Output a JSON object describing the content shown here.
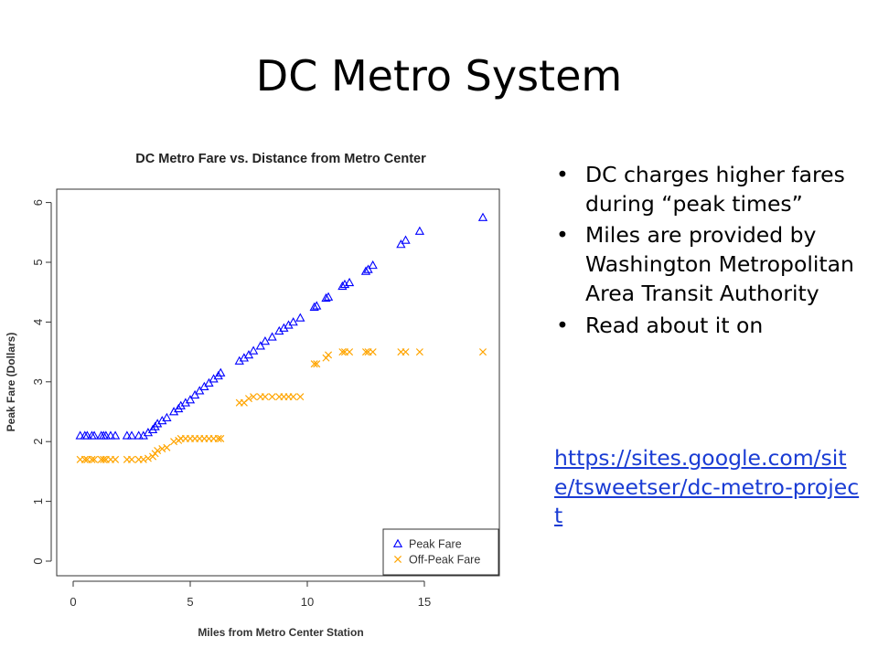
{
  "slide": {
    "title": "DC Metro System",
    "bullets": [
      "DC charges higher fares during “peak times”",
      "Miles are provided by Washington Metropolitan Area Transit Authority",
      "Read about it on"
    ],
    "bullet_char": "•",
    "link_text": "https://sites.google.com/site/tsweetser/dc-metro-project"
  },
  "chart_data": {
    "type": "scatter",
    "title": "DC Metro Fare vs. Distance from Metro Center",
    "xlabel": "Miles from Metro Center Station",
    "ylabel": "Peak Fare (Dollars)",
    "xlim": [
      0,
      18
    ],
    "ylim": [
      0,
      6.2
    ],
    "xticks": [
      0,
      5,
      10,
      15
    ],
    "yticks": [
      0,
      1,
      2,
      3,
      4,
      5,
      6
    ],
    "grid": false,
    "legend_position": "bottom-right",
    "series": [
      {
        "name": "Peak Fare",
        "marker": "triangle",
        "color": "#0000ff",
        "points": [
          [
            0.3,
            2.1
          ],
          [
            0.5,
            2.1
          ],
          [
            0.6,
            2.1
          ],
          [
            0.8,
            2.1
          ],
          [
            0.9,
            2.1
          ],
          [
            1.2,
            2.1
          ],
          [
            1.3,
            2.1
          ],
          [
            1.4,
            2.1
          ],
          [
            1.6,
            2.1
          ],
          [
            1.8,
            2.1
          ],
          [
            2.3,
            2.1
          ],
          [
            2.5,
            2.1
          ],
          [
            2.8,
            2.1
          ],
          [
            3.0,
            2.1
          ],
          [
            3.2,
            2.15
          ],
          [
            3.4,
            2.2
          ],
          [
            3.5,
            2.25
          ],
          [
            3.6,
            2.3
          ],
          [
            3.8,
            2.35
          ],
          [
            4.0,
            2.4
          ],
          [
            4.3,
            2.5
          ],
          [
            4.5,
            2.55
          ],
          [
            4.6,
            2.6
          ],
          [
            4.8,
            2.65
          ],
          [
            5.0,
            2.7
          ],
          [
            5.2,
            2.78
          ],
          [
            5.4,
            2.85
          ],
          [
            5.6,
            2.92
          ],
          [
            5.8,
            2.98
          ],
          [
            6.0,
            3.05
          ],
          [
            6.2,
            3.1
          ],
          [
            6.3,
            3.15
          ],
          [
            7.1,
            3.35
          ],
          [
            7.3,
            3.4
          ],
          [
            7.5,
            3.45
          ],
          [
            7.7,
            3.52
          ],
          [
            8.0,
            3.6
          ],
          [
            8.2,
            3.68
          ],
          [
            8.5,
            3.75
          ],
          [
            8.8,
            3.85
          ],
          [
            9.0,
            3.9
          ],
          [
            9.2,
            3.95
          ],
          [
            9.4,
            4.0
          ],
          [
            9.7,
            4.07
          ],
          [
            10.3,
            4.25
          ],
          [
            10.4,
            4.27
          ],
          [
            10.8,
            4.4
          ],
          [
            10.9,
            4.42
          ],
          [
            11.5,
            4.6
          ],
          [
            11.6,
            4.63
          ],
          [
            11.8,
            4.66
          ],
          [
            12.5,
            4.85
          ],
          [
            12.6,
            4.88
          ],
          [
            12.8,
            4.95
          ],
          [
            14.0,
            5.3
          ],
          [
            14.2,
            5.37
          ],
          [
            14.8,
            5.52
          ],
          [
            17.5,
            5.75
          ]
        ]
      },
      {
        "name": "Off-Peak Fare",
        "marker": "x",
        "color": "#ffa500",
        "points": [
          [
            0.3,
            1.7
          ],
          [
            0.5,
            1.7
          ],
          [
            0.6,
            1.7
          ],
          [
            0.8,
            1.7
          ],
          [
            0.9,
            1.7
          ],
          [
            1.2,
            1.7
          ],
          [
            1.3,
            1.7
          ],
          [
            1.4,
            1.7
          ],
          [
            1.6,
            1.7
          ],
          [
            1.8,
            1.7
          ],
          [
            2.3,
            1.7
          ],
          [
            2.5,
            1.7
          ],
          [
            2.8,
            1.7
          ],
          [
            3.0,
            1.7
          ],
          [
            3.2,
            1.72
          ],
          [
            3.4,
            1.75
          ],
          [
            3.5,
            1.8
          ],
          [
            3.6,
            1.85
          ],
          [
            3.8,
            1.88
          ],
          [
            4.0,
            1.9
          ],
          [
            4.3,
            2.0
          ],
          [
            4.5,
            2.02
          ],
          [
            4.6,
            2.05
          ],
          [
            4.8,
            2.05
          ],
          [
            5.0,
            2.05
          ],
          [
            5.2,
            2.05
          ],
          [
            5.4,
            2.05
          ],
          [
            5.6,
            2.05
          ],
          [
            5.8,
            2.05
          ],
          [
            6.0,
            2.05
          ],
          [
            6.2,
            2.05
          ],
          [
            6.3,
            2.05
          ],
          [
            7.1,
            2.65
          ],
          [
            7.3,
            2.65
          ],
          [
            7.5,
            2.72
          ],
          [
            7.7,
            2.75
          ],
          [
            8.0,
            2.75
          ],
          [
            8.2,
            2.75
          ],
          [
            8.5,
            2.75
          ],
          [
            8.8,
            2.75
          ],
          [
            9.0,
            2.75
          ],
          [
            9.2,
            2.75
          ],
          [
            9.4,
            2.75
          ],
          [
            9.7,
            2.75
          ],
          [
            10.3,
            3.3
          ],
          [
            10.4,
            3.3
          ],
          [
            10.8,
            3.4
          ],
          [
            10.9,
            3.45
          ],
          [
            11.5,
            3.5
          ],
          [
            11.6,
            3.5
          ],
          [
            11.8,
            3.5
          ],
          [
            12.5,
            3.5
          ],
          [
            12.6,
            3.5
          ],
          [
            12.8,
            3.5
          ],
          [
            14.0,
            3.5
          ],
          [
            14.2,
            3.5
          ],
          [
            14.8,
            3.5
          ],
          [
            17.5,
            3.5
          ]
        ]
      }
    ]
  }
}
